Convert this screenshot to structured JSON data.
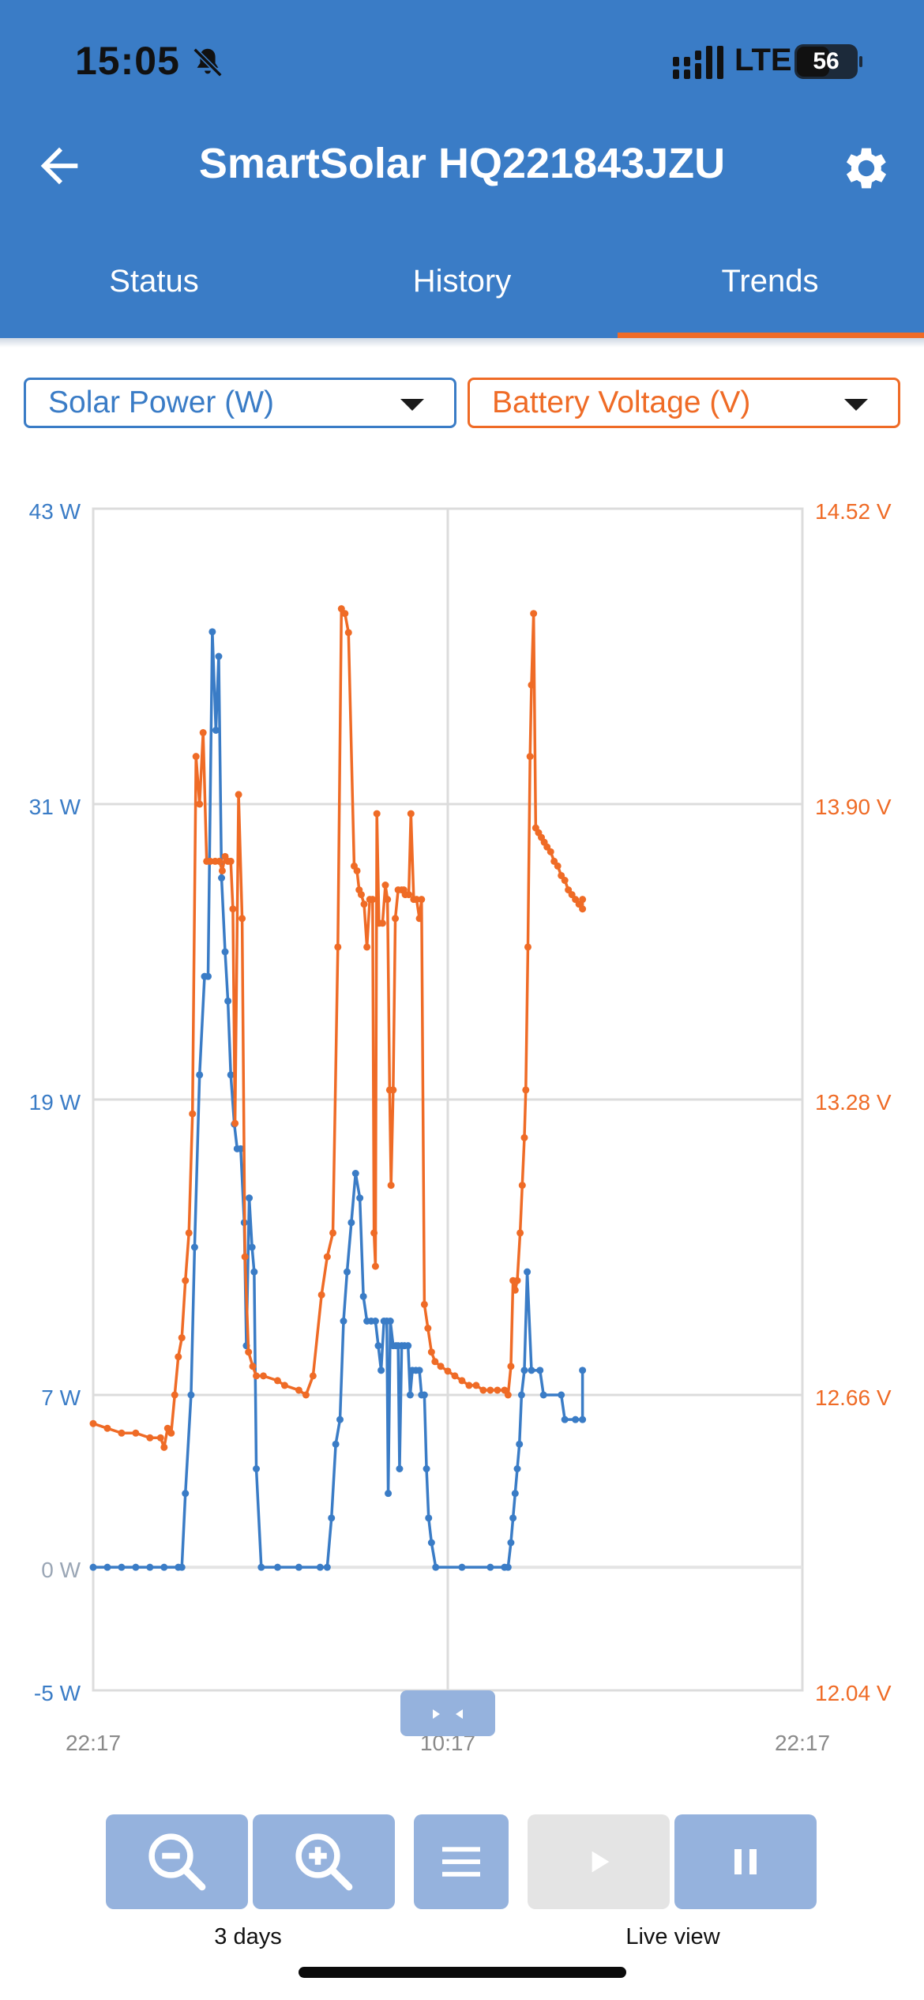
{
  "status_bar": {
    "time": "15:05",
    "network": "LTE",
    "battery": "56",
    "battery_level": 0.56
  },
  "header": {
    "title": "SmartSolar HQ221843JZU"
  },
  "tabs": [
    {
      "label": "Status",
      "active": false
    },
    {
      "label": "History",
      "active": false
    },
    {
      "label": "Trends",
      "active": true
    }
  ],
  "selectors": {
    "left": {
      "label": "Solar Power (W)"
    },
    "right": {
      "label": "Battery Voltage (V)"
    }
  },
  "colors": {
    "accent": "#3a7cc6",
    "secondary": "#ef6b26",
    "grid": "#dcdcdc",
    "disabled": "#e4e4e4",
    "button": "#95b2dd"
  },
  "chart_data": {
    "type": "line",
    "x_ticks": [
      "22:17",
      "10:17",
      "22:17"
    ],
    "grid": true,
    "y_left": {
      "unit": "W",
      "range": [
        -5,
        43
      ],
      "ticks": [
        "43 W",
        "31 W",
        "19 W",
        "7 W",
        "0 W",
        "-5 W"
      ],
      "tick_values": [
        43,
        31,
        19,
        7,
        0,
        -5
      ]
    },
    "y_right": {
      "unit": "V",
      "range": [
        12.04,
        14.52
      ],
      "ticks": [
        "14.52 V",
        "13.90 V",
        "13.28 V",
        "12.66 V",
        "12.04 V"
      ],
      "tick_values": [
        14.52,
        13.9,
        13.28,
        12.66,
        12.04
      ]
    },
    "series": [
      {
        "name": "Solar Power (W)",
        "axis": "left",
        "color": "#3a7cc6",
        "points": [
          [
            0.0,
            0
          ],
          [
            0.02,
            0
          ],
          [
            0.04,
            0
          ],
          [
            0.06,
            0
          ],
          [
            0.08,
            0
          ],
          [
            0.1,
            0
          ],
          [
            0.12,
            0
          ],
          [
            0.125,
            0
          ],
          [
            0.13,
            3
          ],
          [
            0.138,
            7
          ],
          [
            0.143,
            13
          ],
          [
            0.15,
            20
          ],
          [
            0.157,
            24
          ],
          [
            0.162,
            24
          ],
          [
            0.168,
            38
          ],
          [
            0.173,
            34
          ],
          [
            0.177,
            37
          ],
          [
            0.181,
            28
          ],
          [
            0.186,
            25
          ],
          [
            0.19,
            23
          ],
          [
            0.194,
            20
          ],
          [
            0.199,
            18
          ],
          [
            0.203,
            17
          ],
          [
            0.208,
            17
          ],
          [
            0.213,
            14
          ],
          [
            0.216,
            9
          ],
          [
            0.22,
            15
          ],
          [
            0.224,
            13
          ],
          [
            0.227,
            12
          ],
          [
            0.23,
            4
          ],
          [
            0.237,
            0
          ],
          [
            0.26,
            0
          ],
          [
            0.29,
            0
          ],
          [
            0.32,
            0
          ],
          [
            0.33,
            0
          ],
          [
            0.336,
            2
          ],
          [
            0.342,
            5
          ],
          [
            0.348,
            6
          ],
          [
            0.353,
            10
          ],
          [
            0.358,
            12
          ],
          [
            0.364,
            14
          ],
          [
            0.37,
            16
          ],
          [
            0.376,
            15
          ],
          [
            0.381,
            11
          ],
          [
            0.386,
            10
          ],
          [
            0.392,
            10
          ],
          [
            0.398,
            10
          ],
          [
            0.402,
            9
          ],
          [
            0.406,
            8
          ],
          [
            0.41,
            10
          ],
          [
            0.414,
            10
          ],
          [
            0.416,
            3
          ],
          [
            0.419,
            10
          ],
          [
            0.423,
            9
          ],
          [
            0.427,
            9
          ],
          [
            0.43,
            9
          ],
          [
            0.432,
            4
          ],
          [
            0.435,
            9
          ],
          [
            0.439,
            9
          ],
          [
            0.444,
            9
          ],
          [
            0.447,
            7
          ],
          [
            0.45,
            8
          ],
          [
            0.455,
            8
          ],
          [
            0.46,
            8
          ],
          [
            0.463,
            7
          ],
          [
            0.467,
            7
          ],
          [
            0.47,
            4
          ],
          [
            0.473,
            2
          ],
          [
            0.477,
            1
          ],
          [
            0.483,
            0
          ],
          [
            0.52,
            0
          ],
          [
            0.56,
            0
          ],
          [
            0.58,
            0
          ],
          [
            0.585,
            0
          ],
          [
            0.589,
            1
          ],
          [
            0.592,
            2
          ],
          [
            0.595,
            3
          ],
          [
            0.598,
            4
          ],
          [
            0.601,
            5
          ],
          [
            0.604,
            7
          ],
          [
            0.608,
            8
          ],
          [
            0.612,
            12
          ],
          [
            0.618,
            8
          ],
          [
            0.63,
            8
          ],
          [
            0.635,
            7
          ],
          [
            0.66,
            7
          ],
          [
            0.665,
            6
          ],
          [
            0.68,
            6
          ],
          [
            0.69,
            6
          ],
          [
            0.69,
            8
          ]
        ]
      },
      {
        "name": "Battery Voltage (V)",
        "axis": "right",
        "color": "#ef6b26",
        "points": [
          [
            0.0,
            12.6
          ],
          [
            0.02,
            12.59
          ],
          [
            0.04,
            12.58
          ],
          [
            0.06,
            12.58
          ],
          [
            0.08,
            12.57
          ],
          [
            0.095,
            12.57
          ],
          [
            0.1,
            12.55
          ],
          [
            0.105,
            12.59
          ],
          [
            0.11,
            12.58
          ],
          [
            0.115,
            12.66
          ],
          [
            0.12,
            12.74
          ],
          [
            0.125,
            12.78
          ],
          [
            0.13,
            12.9
          ],
          [
            0.135,
            13.0
          ],
          [
            0.14,
            13.25
          ],
          [
            0.145,
            14.0
          ],
          [
            0.15,
            13.9
          ],
          [
            0.155,
            14.05
          ],
          [
            0.16,
            13.78
          ],
          [
            0.165,
            13.78
          ],
          [
            0.172,
            13.78
          ],
          [
            0.178,
            13.78
          ],
          [
            0.182,
            13.76
          ],
          [
            0.186,
            13.79
          ],
          [
            0.19,
            13.78
          ],
          [
            0.194,
            13.78
          ],
          [
            0.197,
            13.68
          ],
          [
            0.2,
            13.23
          ],
          [
            0.205,
            13.92
          ],
          [
            0.21,
            13.66
          ],
          [
            0.214,
            12.95
          ],
          [
            0.219,
            12.75
          ],
          [
            0.225,
            12.72
          ],
          [
            0.23,
            12.7
          ],
          [
            0.24,
            12.7
          ],
          [
            0.26,
            12.69
          ],
          [
            0.27,
            12.68
          ],
          [
            0.29,
            12.67
          ],
          [
            0.3,
            12.66
          ],
          [
            0.31,
            12.7
          ],
          [
            0.322,
            12.87
          ],
          [
            0.33,
            12.95
          ],
          [
            0.338,
            13.0
          ],
          [
            0.345,
            13.6
          ],
          [
            0.35,
            14.31
          ],
          [
            0.355,
            14.3
          ],
          [
            0.36,
            14.26
          ],
          [
            0.368,
            13.77
          ],
          [
            0.372,
            13.76
          ],
          [
            0.375,
            13.72
          ],
          [
            0.378,
            13.71
          ],
          [
            0.382,
            13.69
          ],
          [
            0.386,
            13.6
          ],
          [
            0.39,
            13.7
          ],
          [
            0.394,
            13.7
          ],
          [
            0.396,
            13.0
          ],
          [
            0.398,
            12.93
          ],
          [
            0.4,
            13.88
          ],
          [
            0.403,
            13.65
          ],
          [
            0.408,
            13.65
          ],
          [
            0.412,
            13.73
          ],
          [
            0.415,
            13.7
          ],
          [
            0.418,
            13.3
          ],
          [
            0.42,
            13.1
          ],
          [
            0.423,
            13.3
          ],
          [
            0.426,
            13.66
          ],
          [
            0.43,
            13.72
          ],
          [
            0.435,
            13.72
          ],
          [
            0.438,
            13.72
          ],
          [
            0.44,
            13.71
          ],
          [
            0.445,
            13.71
          ],
          [
            0.448,
            13.88
          ],
          [
            0.452,
            13.7
          ],
          [
            0.456,
            13.7
          ],
          [
            0.46,
            13.66
          ],
          [
            0.463,
            13.7
          ],
          [
            0.467,
            12.85
          ],
          [
            0.472,
            12.8
          ],
          [
            0.477,
            12.75
          ],
          [
            0.482,
            12.73
          ],
          [
            0.49,
            12.72
          ],
          [
            0.5,
            12.71
          ],
          [
            0.51,
            12.7
          ],
          [
            0.52,
            12.69
          ],
          [
            0.53,
            12.68
          ],
          [
            0.54,
            12.68
          ],
          [
            0.55,
            12.67
          ],
          [
            0.56,
            12.67
          ],
          [
            0.57,
            12.67
          ],
          [
            0.58,
            12.67
          ],
          [
            0.585,
            12.66
          ],
          [
            0.589,
            12.72
          ],
          [
            0.592,
            12.9
          ],
          [
            0.595,
            12.88
          ],
          [
            0.598,
            12.9
          ],
          [
            0.602,
            13.0
          ],
          [
            0.605,
            13.1
          ],
          [
            0.608,
            13.2
          ],
          [
            0.61,
            13.3
          ],
          [
            0.613,
            13.6
          ],
          [
            0.616,
            14.0
          ],
          [
            0.618,
            14.15
          ],
          [
            0.621,
            14.3
          ],
          [
            0.624,
            13.85
          ],
          [
            0.628,
            13.84
          ],
          [
            0.632,
            13.83
          ],
          [
            0.636,
            13.82
          ],
          [
            0.64,
            13.81
          ],
          [
            0.645,
            13.8
          ],
          [
            0.65,
            13.78
          ],
          [
            0.655,
            13.77
          ],
          [
            0.66,
            13.75
          ],
          [
            0.665,
            13.74
          ],
          [
            0.67,
            13.72
          ],
          [
            0.675,
            13.71
          ],
          [
            0.68,
            13.7
          ],
          [
            0.685,
            13.69
          ],
          [
            0.69,
            13.68
          ],
          [
            0.69,
            13.7
          ]
        ]
      }
    ]
  },
  "toolbar": {
    "zoom_caption": "3 days",
    "live_caption": "Live view"
  }
}
